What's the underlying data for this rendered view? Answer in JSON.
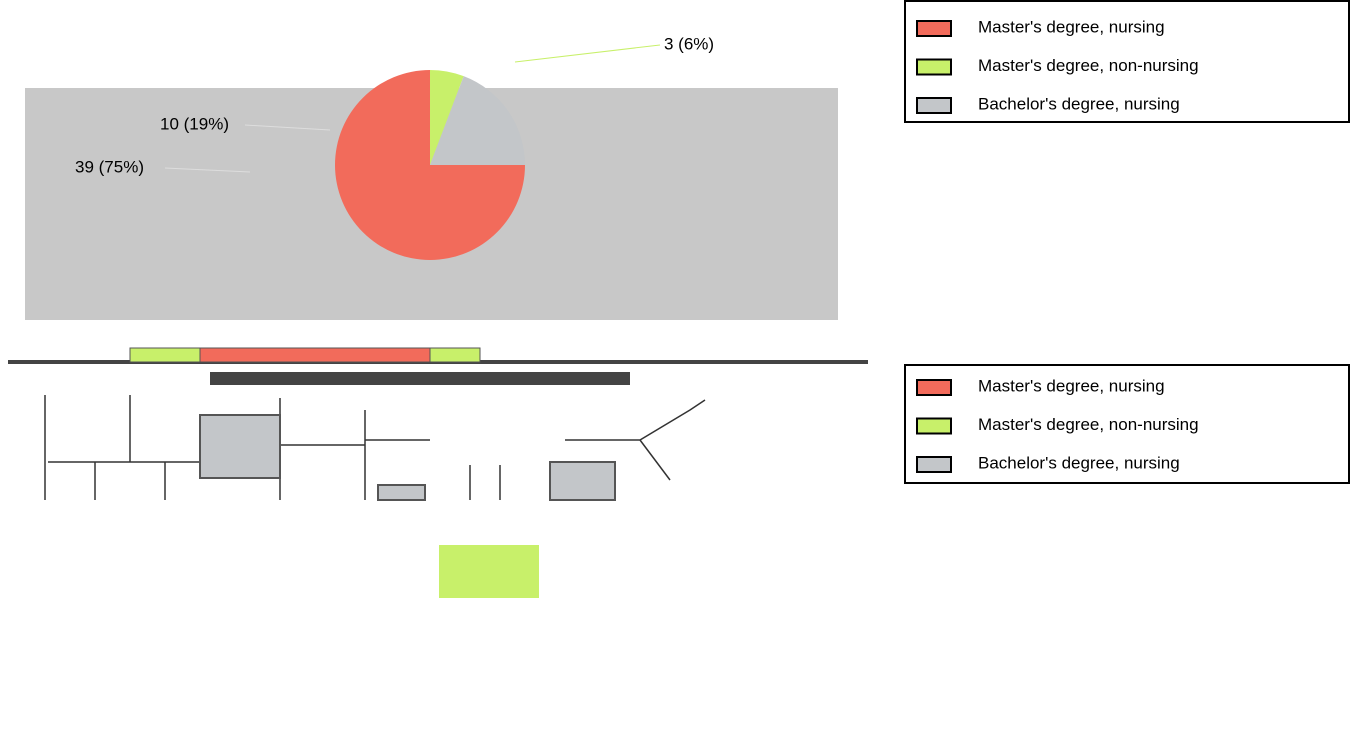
{
  "chart_data": [
    {
      "type": "pie",
      "categories": [
        "Master's degree, nursing",
        "Master's degree, non-nursing",
        "Bachelor's degree, nursing"
      ],
      "values": [
        39,
        3,
        10
      ],
      "value_labels": [
        "39 (75%)",
        "3 (6%)",
        "10 (19%)"
      ],
      "colors": [
        "#f26b5b",
        "#c8f06a",
        "#c3c6c9"
      ]
    },
    {
      "type": "map",
      "categories": [
        "Master's degree, nursing",
        "Master's degree, non-nursing",
        "Bachelor's degree, nursing"
      ],
      "colors": [
        "#f26b5b",
        "#c8f06a",
        "#c3c6c9"
      ]
    }
  ]
}
